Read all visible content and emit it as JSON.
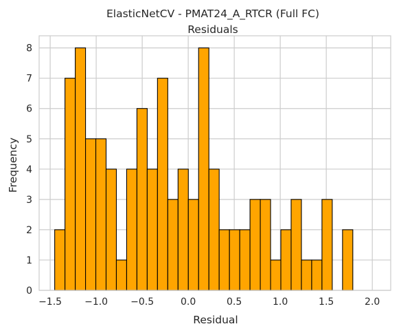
{
  "chart_data": {
    "type": "bar",
    "title": "ElasticNetCV - PMAT24_A_RTCR (Full FC)",
    "subtitle": "Residuals",
    "xlabel": "Residual",
    "ylabel": "Frequency",
    "xlim": [
      -1.62,
      2.2
    ],
    "ylim": [
      0,
      8.4
    ],
    "xticks": [
      -1.5,
      -1.0,
      -0.5,
      0.0,
      0.5,
      1.0,
      1.5,
      2.0
    ],
    "xtick_labels": [
      "−1.5",
      "−1.0",
      "−0.5",
      "0.0",
      "0.5",
      "1.0",
      "1.5",
      "2.0"
    ],
    "yticks": [
      0,
      1,
      2,
      3,
      4,
      5,
      6,
      7,
      8
    ],
    "ytick_labels": [
      "0",
      "1",
      "2",
      "3",
      "4",
      "5",
      "6",
      "7",
      "8"
    ],
    "grid": true,
    "bin_start": -1.451,
    "bin_width": 0.1117,
    "values": [
      2,
      7,
      8,
      5,
      5,
      4,
      1,
      4,
      6,
      4,
      7,
      3,
      4,
      3,
      8,
      4,
      2,
      2,
      2,
      3,
      3,
      1,
      2,
      3,
      1,
      1,
      3,
      0,
      2
    ],
    "bar_color": "#ffa500",
    "edge_color": "#000000",
    "grid_color": "#cccccc"
  }
}
